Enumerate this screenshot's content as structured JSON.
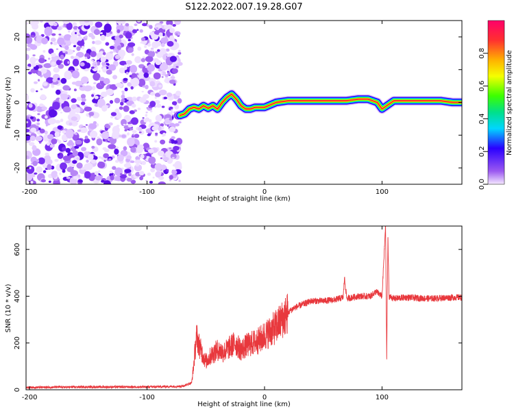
{
  "title": "S122.2022.007.19.28.G07",
  "chart_data": [
    {
      "type": "heatmap",
      "xlabel": "Height of straight line (km)",
      "ylabel": "Frequency (Hz)",
      "xlim": [
        -203,
        168
      ],
      "ylim": [
        -25,
        25
      ],
      "xticks": [
        "-200",
        "-100",
        "0",
        "100"
      ],
      "yticks": [
        "-20",
        "-10",
        "0",
        "10",
        "20"
      ],
      "colorbar": {
        "label": "Normalized spectral amplitude",
        "range": [
          0.0,
          1.0
        ],
        "ticks": [
          "0.0",
          "0.2",
          "0.4",
          "0.6",
          "0.8"
        ],
        "colors": [
          "#f5e9ff",
          "#9b59f0",
          "#2a00ff",
          "#00d6ff",
          "#00e08a",
          "#3cff00",
          "#f5ff00",
          "#ffb000",
          "#ff3030",
          "#ff006a"
        ]
      },
      "noise_region": {
        "x_start": -203,
        "x_end": -72
      },
      "ridge": {
        "x": [
          -72,
          -68,
          -64,
          -60,
          -56,
          -52,
          -48,
          -44,
          -40,
          -36,
          -32,
          -28,
          -24,
          -20,
          -16,
          -12,
          -8,
          -4,
          0,
          10,
          20,
          30,
          40,
          50,
          60,
          70,
          80,
          88,
          92,
          96,
          100,
          110,
          120,
          130,
          140,
          150,
          160,
          168
        ],
        "y": [
          -4,
          -3.5,
          -2,
          -1.5,
          -2,
          -1,
          -1.8,
          -1,
          -2,
          0,
          1.5,
          2.5,
          1,
          -1,
          -2,
          -2,
          -1.5,
          -1.5,
          -1.5,
          0,
          0.5,
          0.5,
          0.5,
          0.5,
          0.5,
          0.5,
          1,
          1,
          0.5,
          0,
          -2,
          0.5,
          0.5,
          0.5,
          0.5,
          0.5,
          0,
          0
        ]
      }
    },
    {
      "type": "line",
      "xlabel": "Height of straight line (km)",
      "ylabel": "SNR (10 * v/v)",
      "xlim": [
        -203,
        168
      ],
      "ylim": [
        0,
        700
      ],
      "xticks": [
        "-200",
        "-100",
        "0",
        "100"
      ],
      "yticks": [
        "0",
        "200",
        "400",
        "600"
      ],
      "color": "#e8383d",
      "series": [
        {
          "x": [
            -203,
            -150,
            -100,
            -70,
            -62,
            -60,
            -58,
            -55,
            -50,
            -45,
            -40,
            -35,
            -30,
            -25,
            -20,
            -15,
            -10,
            -5,
            0,
            5,
            10,
            15,
            20,
            25,
            30,
            35,
            40,
            50,
            60,
            67,
            68,
            70,
            80,
            90,
            95,
            100,
            102,
            103,
            104,
            105,
            106,
            110,
            120,
            130,
            140,
            150,
            160,
            168
          ],
          "y": [
            10,
            12,
            12,
            15,
            30,
            120,
            230,
            180,
            120,
            150,
            170,
            160,
            180,
            200,
            170,
            190,
            200,
            210,
            230,
            250,
            270,
            300,
            330,
            350,
            360,
            370,
            380,
            380,
            385,
            395,
            480,
            390,
            400,
            400,
            420,
            400,
            600,
            700,
            130,
            650,
            400,
            390,
            395,
            392,
            390,
            392,
            395,
            395
          ]
        }
      ]
    }
  ]
}
